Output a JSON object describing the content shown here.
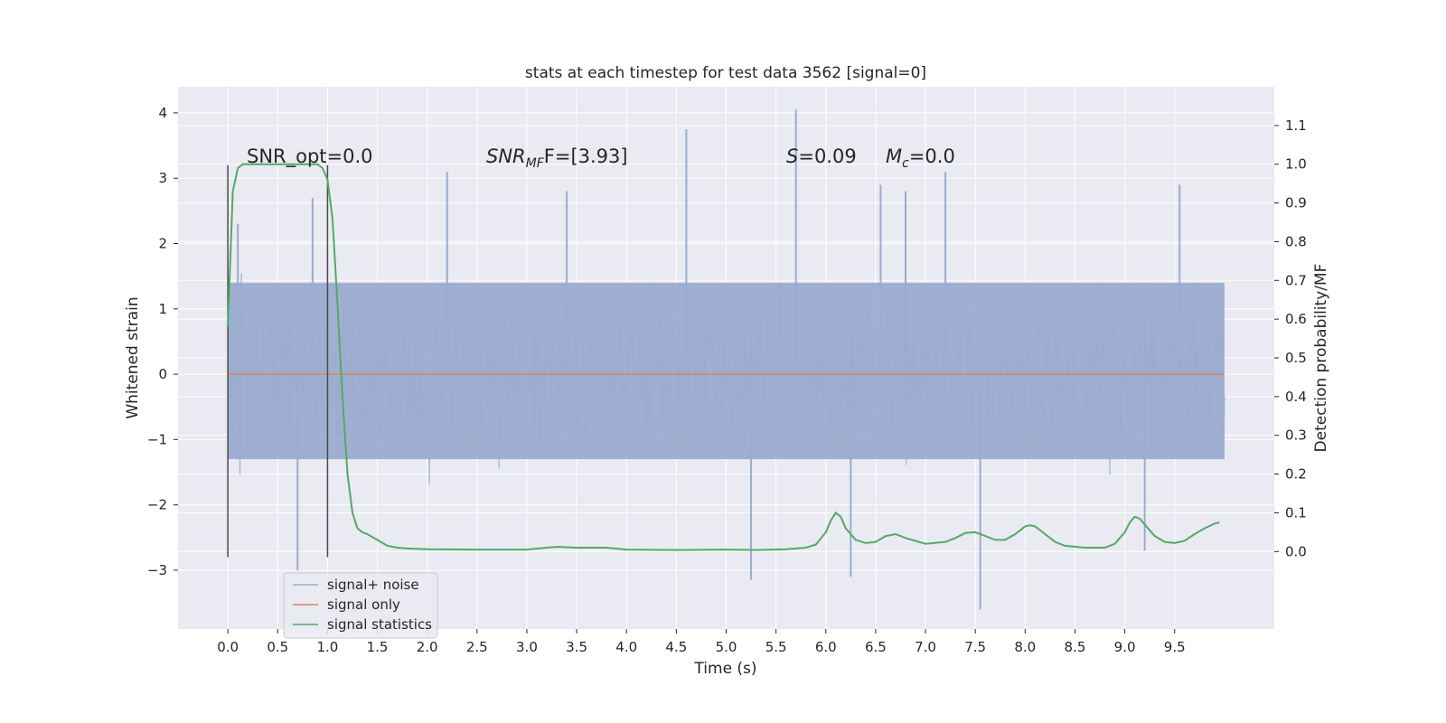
{
  "chart_data": {
    "type": "line",
    "title": "stats at each timestep for test data 3562 [signal=0]",
    "xlabel": "Time (s)",
    "ylabel": "Whitened strain",
    "y2label": "Detection probability/MF",
    "xlim": [
      -0.5,
      10.5
    ],
    "ylim": [
      -3.9,
      4.4
    ],
    "y2lim": [
      -0.2,
      1.2
    ],
    "x_ticks": [
      "0.0",
      "0.5",
      "1.0",
      "1.5",
      "2.0",
      "2.5",
      "3.0",
      "3.5",
      "4.0",
      "4.5",
      "5.0",
      "5.5",
      "6.0",
      "6.5",
      "7.0",
      "7.5",
      "8.0",
      "8.5",
      "9.0",
      "9.5"
    ],
    "x_tick_values": [
      0,
      0.5,
      1,
      1.5,
      2,
      2.5,
      3,
      3.5,
      4,
      4.5,
      5,
      5.5,
      6,
      6.5,
      7,
      7.5,
      8,
      8.5,
      9,
      9.5
    ],
    "y_ticks": [
      "−3",
      "−2",
      "−1",
      "0",
      "1",
      "2",
      "3",
      "4"
    ],
    "y_tick_values": [
      -3,
      -2,
      -1,
      0,
      1,
      2,
      3,
      4
    ],
    "y2_ticks": [
      "0.0",
      "0.1",
      "0.2",
      "0.3",
      "0.4",
      "0.5",
      "0.6",
      "0.7",
      "0.8",
      "0.9",
      "1.0",
      "1.1"
    ],
    "y2_tick_values": [
      0,
      0.1,
      0.2,
      0.3,
      0.4,
      0.5,
      0.6,
      0.7,
      0.8,
      0.9,
      1.0,
      1.1
    ],
    "grid": true,
    "legend_position": "bottom-left",
    "colors": {
      "background": "#eaeaf2",
      "grid": "#ffffff",
      "noise": "#9aaccf",
      "signal_only": "#dd8452",
      "statistics": "#55a868",
      "marker": "#4a4a4a"
    },
    "series": [
      {
        "name": "signal+ noise",
        "kind": "noise-band",
        "x_range": [
          0.0,
          10.0
        ],
        "band": [
          -1.3,
          1.4
        ],
        "notable_spikes": [
          {
            "x": 0.1,
            "y": 2.3
          },
          {
            "x": 0.7,
            "y": -3.0
          },
          {
            "x": 0.85,
            "y": 2.7
          },
          {
            "x": 2.2,
            "y": 3.1
          },
          {
            "x": 3.4,
            "y": 2.8
          },
          {
            "x": 4.6,
            "y": 3.75
          },
          {
            "x": 5.25,
            "y": -3.15
          },
          {
            "x": 5.7,
            "y": 4.05
          },
          {
            "x": 6.25,
            "y": -3.1
          },
          {
            "x": 6.55,
            "y": 2.9
          },
          {
            "x": 6.8,
            "y": 2.8
          },
          {
            "x": 7.2,
            "y": 3.1
          },
          {
            "x": 7.55,
            "y": -3.6
          },
          {
            "x": 9.2,
            "y": -2.7
          },
          {
            "x": 9.55,
            "y": 2.9
          }
        ]
      },
      {
        "name": "signal only",
        "kind": "line",
        "x": [
          0.0,
          10.0
        ],
        "y": [
          0.0,
          0.0
        ]
      },
      {
        "name": "signal statistics",
        "kind": "line-y2",
        "x": [
          0.0,
          0.05,
          0.1,
          0.15,
          0.2,
          0.3,
          0.4,
          0.5,
          0.6,
          0.7,
          0.8,
          0.9,
          0.95,
          1.0,
          1.05,
          1.1,
          1.15,
          1.2,
          1.25,
          1.3,
          1.35,
          1.4,
          1.5,
          1.6,
          1.7,
          1.8,
          2.0,
          2.5,
          3.0,
          3.2,
          3.3,
          3.5,
          3.8,
          4.0,
          4.5,
          5.0,
          5.3,
          5.6,
          5.8,
          5.9,
          6.0,
          6.05,
          6.1,
          6.15,
          6.2,
          6.3,
          6.4,
          6.5,
          6.6,
          6.7,
          6.8,
          7.0,
          7.2,
          7.3,
          7.4,
          7.5,
          7.6,
          7.7,
          7.8,
          7.9,
          8.0,
          8.05,
          8.1,
          8.2,
          8.3,
          8.4,
          8.6,
          8.8,
          8.9,
          9.0,
          9.05,
          9.1,
          9.15,
          9.2,
          9.3,
          9.4,
          9.5,
          9.6,
          9.7,
          9.8,
          9.9,
          9.95
        ],
        "y": [
          0.58,
          0.93,
          0.99,
          1.0,
          1.0,
          1.0,
          1.0,
          1.0,
          1.0,
          1.0,
          1.0,
          1.0,
          0.99,
          0.96,
          0.86,
          0.64,
          0.4,
          0.2,
          0.1,
          0.06,
          0.05,
          0.045,
          0.03,
          0.015,
          0.01,
          0.008,
          0.006,
          0.005,
          0.005,
          0.01,
          0.012,
          0.01,
          0.01,
          0.005,
          0.004,
          0.005,
          0.004,
          0.006,
          0.01,
          0.018,
          0.05,
          0.08,
          0.1,
          0.09,
          0.06,
          0.03,
          0.022,
          0.025,
          0.04,
          0.045,
          0.035,
          0.02,
          0.025,
          0.035,
          0.048,
          0.05,
          0.04,
          0.03,
          0.03,
          0.045,
          0.065,
          0.068,
          0.065,
          0.045,
          0.025,
          0.015,
          0.01,
          0.01,
          0.02,
          0.05,
          0.075,
          0.09,
          0.085,
          0.07,
          0.04,
          0.025,
          0.022,
          0.028,
          0.045,
          0.06,
          0.072,
          0.075
        ]
      }
    ],
    "markers": {
      "x": [
        0.0,
        1.0
      ],
      "y_range": [
        -2.8,
        3.2
      ]
    },
    "annotations": [
      {
        "id": "snr-opt",
        "text": "SNR_opt=0.0"
      },
      {
        "id": "snr-mf",
        "main": "SNR",
        "sub": "MF",
        "rest": "F=[3.93]"
      },
      {
        "id": "s-stat",
        "main": "S",
        "rest": "=0.09"
      },
      {
        "id": "mc-stat",
        "main": "M",
        "sub": "c",
        "rest": "=0.0"
      }
    ]
  }
}
